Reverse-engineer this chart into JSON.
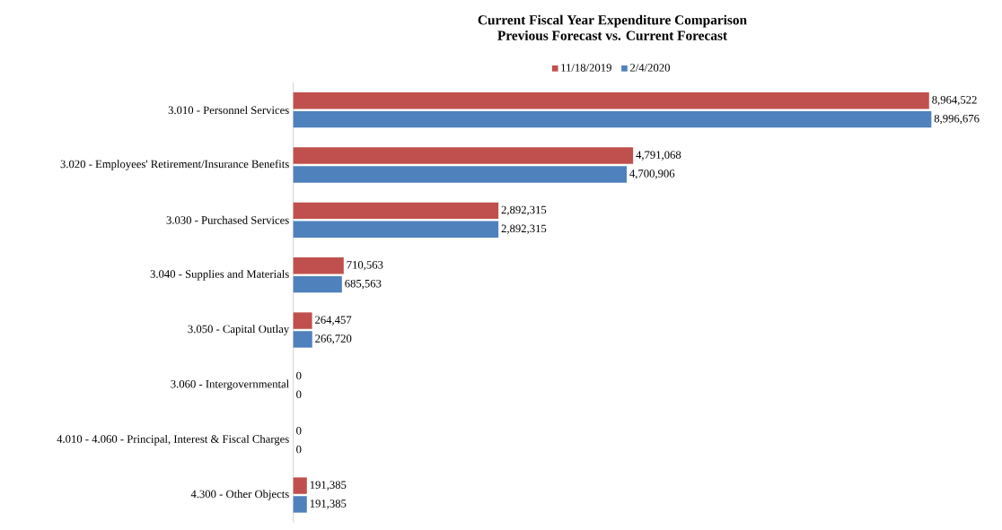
{
  "chart_data": {
    "type": "bar",
    "orientation": "horizontal",
    "title": "Current Fiscal Year Expenditure Comparison",
    "subtitle": "Previous Forecast vs. Current Forecast",
    "categories": [
      "3.010 - Personnel Services",
      "3.020 - Employees' Retirement/Insurance Benefits",
      "3.030 - Purchased Services",
      "3.040 - Supplies and Materials",
      "3.050 - Capital Outlay",
      "3.060 - Intergovernmental",
      "4.010 - 4.060 - Principal, Interest & Fiscal Charges",
      "4.300 - Other Objects"
    ],
    "series": [
      {
        "name": "11/18/2019",
        "color": "#c0504d",
        "values": [
          8964522,
          4791068,
          2892315,
          710563,
          264457,
          0,
          0,
          191385
        ],
        "value_labels": [
          "8,964,522",
          "4,791,068",
          "2,892,315",
          "710,563",
          "264,457",
          "0",
          "0",
          "191,385"
        ]
      },
      {
        "name": "2/4/2020",
        "color": "#4f81bd",
        "values": [
          8996676,
          4700906,
          2892315,
          685563,
          266720,
          0,
          0,
          191385
        ],
        "value_labels": [
          "8,996,676",
          "4,700,906",
          "2,892,315",
          "685,563",
          "266,720",
          "0",
          "0",
          "191,385"
        ]
      }
    ],
    "tick_labels": "y",
    "legend": "top",
    "grid": false
  }
}
